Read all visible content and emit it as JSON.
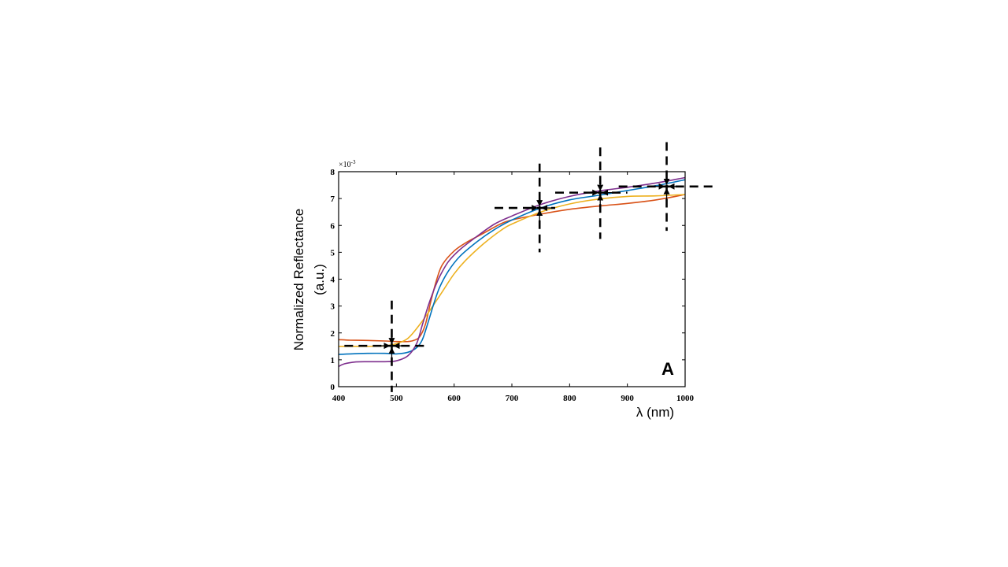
{
  "chart_data": {
    "type": "line",
    "xlabel": "λ (nm)",
    "ylabel_line1": "Normalized Reflectance",
    "ylabel_line2": "(a.u.)",
    "panel_label": "A",
    "y_multiplier": "×10",
    "y_exponent": "-3",
    "xlim": [
      400,
      1000
    ],
    "ylim": [
      0,
      8
    ],
    "xticks": [
      400,
      500,
      600,
      700,
      800,
      900,
      1000
    ],
    "yticks": [
      0,
      1,
      2,
      3,
      4,
      5,
      6,
      7,
      8
    ],
    "grid": false,
    "series": [
      {
        "color": "#D95319",
        "x": [
          400,
          420,
          450,
          480,
          500,
          520,
          530,
          540,
          550,
          560,
          570,
          580,
          600,
          620,
          650,
          680,
          700,
          750,
          800,
          850,
          900,
          950,
          1000
        ],
        "y": [
          1.75,
          1.73,
          1.72,
          1.7,
          1.68,
          1.68,
          1.72,
          1.85,
          2.3,
          3.2,
          4.0,
          4.55,
          5.05,
          5.35,
          5.7,
          6.05,
          6.2,
          6.42,
          6.6,
          6.72,
          6.82,
          6.95,
          7.15
        ]
      },
      {
        "color": "#EDB120",
        "x": [
          400,
          420,
          450,
          480,
          500,
          520,
          540,
          560,
          580,
          600,
          620,
          650,
          680,
          700,
          750,
          800,
          850,
          900,
          950,
          1000
        ],
        "y": [
          1.5,
          1.5,
          1.5,
          1.52,
          1.6,
          1.8,
          2.3,
          2.9,
          3.55,
          4.2,
          4.7,
          5.3,
          5.8,
          6.05,
          6.5,
          6.8,
          6.98,
          7.08,
          7.1,
          7.15
        ]
      },
      {
        "color": "#0072BD",
        "x": [
          400,
          420,
          450,
          480,
          500,
          520,
          535,
          545,
          555,
          565,
          575,
          590,
          610,
          640,
          670,
          700,
          750,
          800,
          850,
          900,
          950,
          1000
        ],
        "y": [
          1.2,
          1.22,
          1.24,
          1.24,
          1.22,
          1.28,
          1.45,
          1.75,
          2.4,
          3.1,
          3.7,
          4.3,
          4.85,
          5.4,
          5.85,
          6.2,
          6.65,
          6.95,
          7.12,
          7.3,
          7.48,
          7.7
        ]
      },
      {
        "color": "#7E2F8E",
        "x": [
          400,
          410,
          430,
          450,
          480,
          500,
          520,
          535,
          545,
          555,
          565,
          575,
          590,
          610,
          640,
          670,
          700,
          750,
          800,
          850,
          900,
          950,
          1000
        ],
        "y": [
          0.75,
          0.85,
          0.92,
          0.93,
          0.93,
          0.96,
          1.15,
          1.6,
          2.3,
          3.0,
          3.6,
          4.1,
          4.65,
          5.1,
          5.6,
          6.05,
          6.35,
          6.78,
          7.08,
          7.28,
          7.42,
          7.58,
          7.78
        ]
      }
    ],
    "annotations": [
      {
        "x": 492,
        "y": 1.52,
        "h_from": 410,
        "h_to": 555,
        "v_from": 3.2,
        "v_to": -0.2
      },
      {
        "x": 748,
        "y": 6.65,
        "h_from": 670,
        "h_to": 775,
        "v_from": 8.3,
        "v_to": 5.0
      },
      {
        "x": 853,
        "y": 7.22,
        "h_from": 775,
        "h_to": 900,
        "v_from": 8.9,
        "v_to": 5.5
      },
      {
        "x": 968,
        "y": 7.45,
        "h_from": 885,
        "h_to": 1048,
        "v_from": 9.1,
        "v_to": 5.8
      }
    ]
  }
}
